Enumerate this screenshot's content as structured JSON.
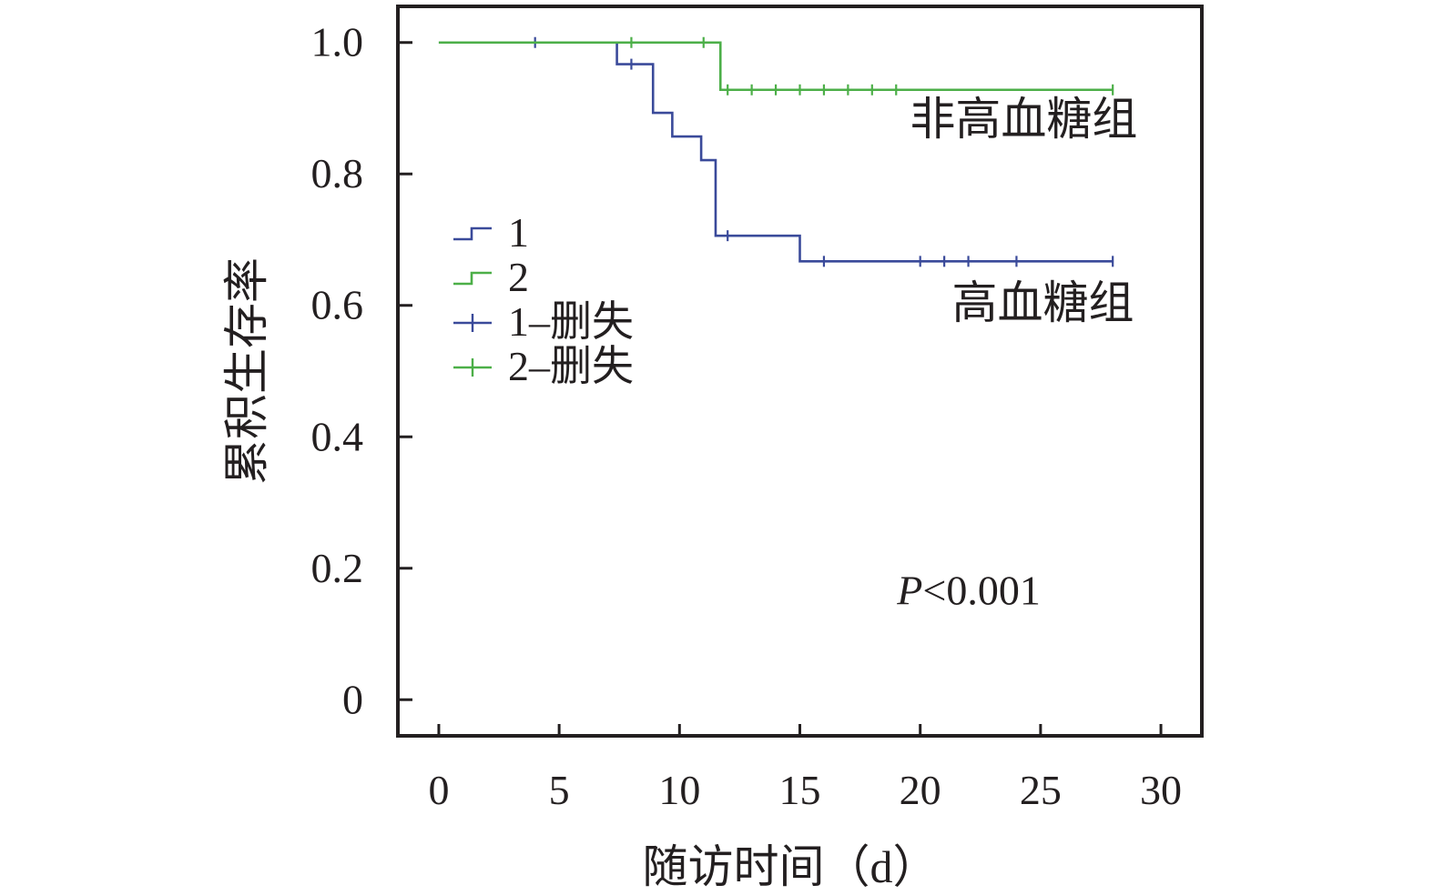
{
  "chart_data": {
    "type": "line",
    "title": "",
    "xlabel": "随访时间（d）",
    "ylabel": "累积生存率",
    "xlim": [
      -1.7,
      31.7
    ],
    "ylim": [
      -0.055,
      1.055
    ],
    "xticks": [
      0,
      5,
      10,
      15,
      20,
      25,
      30
    ],
    "xtick_labels": [
      "0",
      "5",
      "10",
      "15",
      "20",
      "25",
      "30"
    ],
    "yticks": [
      0,
      0.2,
      0.4,
      0.6,
      0.8,
      1.0
    ],
    "ytick_labels": [
      "0",
      "0.2",
      "0.4",
      "0.6",
      "0.8",
      "1.0"
    ],
    "grid": false,
    "legend_position": "upper-left",
    "legend": [
      {
        "label": "1",
        "kind": "step",
        "color": "#3a4a9a"
      },
      {
        "label": "2",
        "kind": "step",
        "color": "#4caf48"
      },
      {
        "label": "1–删失",
        "kind": "censor",
        "color": "#3a4a9a"
      },
      {
        "label": "2–删失",
        "kind": "censor",
        "color": "#4caf48"
      }
    ],
    "series": [
      {
        "name": "1",
        "color": "#3a4a9a",
        "steps": [
          [
            0,
            1.0
          ],
          [
            7.4,
            0.967
          ],
          [
            8.9,
            0.893
          ],
          [
            9.7,
            0.857
          ],
          [
            10.9,
            0.821
          ],
          [
            11.5,
            0.706
          ],
          [
            15.0,
            0.667
          ]
        ],
        "end_x": 28,
        "censored": [
          [
            4,
            1.0
          ],
          [
            8,
            0.967
          ],
          [
            12,
            0.706
          ],
          [
            16,
            0.667
          ],
          [
            20,
            0.667
          ],
          [
            21,
            0.667
          ],
          [
            22,
            0.667
          ],
          [
            24,
            0.667
          ],
          [
            28,
            0.667
          ]
        ]
      },
      {
        "name": "2",
        "color": "#4caf48",
        "steps": [
          [
            0,
            1.0
          ],
          [
            11.7,
            0.928
          ]
        ],
        "end_x": 28,
        "censored": [
          [
            8,
            1.0
          ],
          [
            11,
            1.0
          ],
          [
            12,
            0.928
          ],
          [
            13,
            0.928
          ],
          [
            14,
            0.928
          ],
          [
            15,
            0.928
          ],
          [
            16,
            0.928
          ],
          [
            17,
            0.928
          ],
          [
            18,
            0.928
          ],
          [
            19,
            0.928
          ],
          [
            28,
            0.928
          ]
        ]
      }
    ],
    "annotations": [
      {
        "text": "非高血糖组",
        "x": 24.3,
        "y": 0.86
      },
      {
        "text": "高血糖组",
        "x": 25.1,
        "y": 0.58
      }
    ],
    "p_value": {
      "prefix": "P",
      "suffix": "<0.001",
      "x": 25.0,
      "y": 0.145
    }
  }
}
